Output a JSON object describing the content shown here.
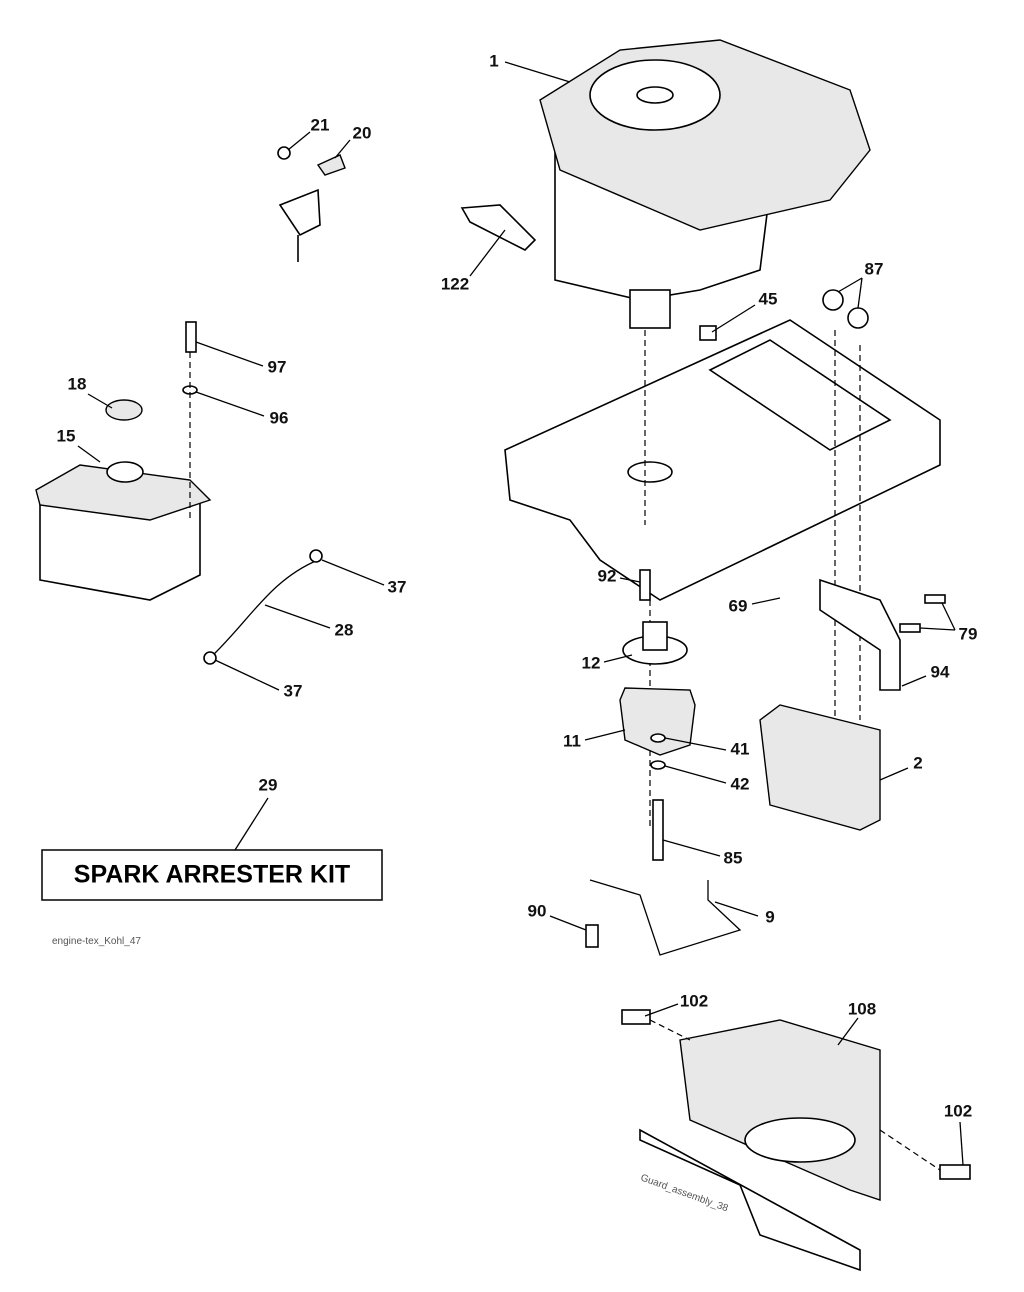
{
  "callouts": [
    "1",
    "21",
    "20",
    "122",
    "45",
    "87",
    "97",
    "18",
    "96",
    "15",
    "92",
    "69",
    "79",
    "12",
    "94",
    "11",
    "41",
    "2",
    "42",
    "37",
    "28",
    "37",
    "29",
    "85",
    "90",
    "9",
    "102",
    "108",
    "102"
  ],
  "box_label": "SPARK ARRESTER KIT",
  "drawing_id": "engine-tex_Kohl_47",
  "guard_id": "Guard_assembly_38"
}
